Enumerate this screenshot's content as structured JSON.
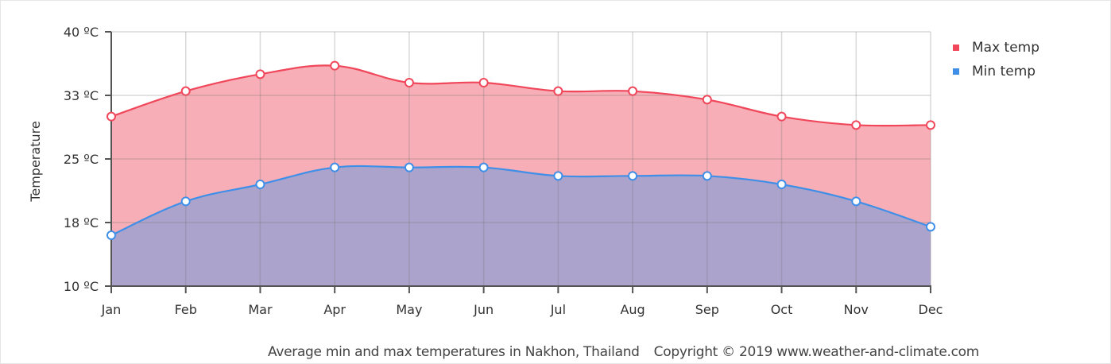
{
  "chart_data": {
    "type": "area",
    "title": "Average min and max temperatures in Nakhon, Thailand",
    "copyright": "Copyright © 2019 www.weather-and-climate.com",
    "xlabel": "",
    "ylabel": "Temperature",
    "ylim": [
      10,
      40
    ],
    "yticks": [
      10,
      17.5,
      25,
      32.5,
      40
    ],
    "ytick_labels": [
      "10 ºC",
      "18 ºC",
      "25 ºC",
      "33 ºC",
      "40 ºC"
    ],
    "categories": [
      "Jan",
      "Feb",
      "Mar",
      "Apr",
      "May",
      "Jun",
      "Jul",
      "Aug",
      "Sep",
      "Oct",
      "Nov",
      "Dec"
    ],
    "series": [
      {
        "name": "Max temp",
        "color": "#f0475b",
        "fill": "#f7aeb6",
        "values": [
          30,
          33,
          35,
          36,
          34,
          34,
          33,
          33,
          32,
          30,
          29,
          29
        ]
      },
      {
        "name": "Min temp",
        "color": "#3f8fe8",
        "fill": "#aba3cc",
        "values": [
          16,
          20,
          22,
          24,
          24,
          24,
          23,
          23,
          23,
          22,
          20,
          17
        ]
      }
    ],
    "grid": true,
    "legend_position": "top-right"
  },
  "legend": {
    "items": [
      {
        "label": "Max temp",
        "color": "#f0475b"
      },
      {
        "label": "Min temp",
        "color": "#3f8fe8"
      }
    ]
  },
  "footer": {
    "caption": "Average min and max temperatures in Nakhon, Thailand",
    "copyright": "Copyright © 2019 www.weather-and-climate.com"
  }
}
